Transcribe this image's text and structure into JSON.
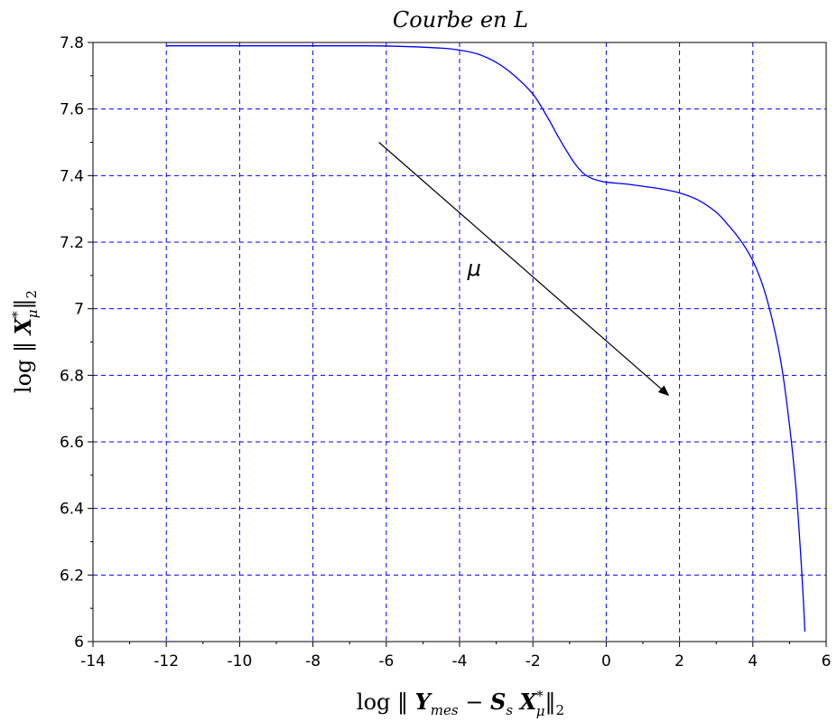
{
  "chart_data": {
    "type": "line",
    "title": "Courbe en L",
    "xlabel": "log ‖ Y_mes − S_s X*_μ ‖_2",
    "ylabel": "log ‖ X*_μ ‖_2",
    "xlim": [
      -14,
      6
    ],
    "ylim": [
      6,
      7.8
    ],
    "xticks": [
      "-14",
      "-12",
      "-10",
      "-8",
      "-6",
      "-4",
      "-2",
      "0",
      "2",
      "4",
      "6"
    ],
    "yticks": [
      "6",
      "6.2",
      "6.4",
      "6.6",
      "6.8",
      "7",
      "7.2",
      "7.4",
      "7.6",
      "7.8"
    ],
    "grid": true,
    "series": [
      {
        "color": "#0000ff",
        "x": [
          -12,
          -10,
          -8,
          -6.5,
          -5.5,
          -4.5,
          -4,
          -3.5,
          -3,
          -2.5,
          -2,
          -1.6,
          -1.3,
          -1.0,
          -0.8,
          -0.6,
          -0.4,
          -0.2,
          0,
          0.5,
          1,
          1.5,
          2,
          2.5,
          3,
          3.3,
          3.6,
          3.9,
          4.1,
          4.3,
          4.5,
          4.7,
          4.85,
          5.0,
          5.1,
          5.2,
          5.3,
          5.38,
          5.42
        ],
        "y": [
          7.79,
          7.79,
          7.79,
          7.79,
          7.788,
          7.783,
          7.777,
          7.765,
          7.74,
          7.7,
          7.645,
          7.575,
          7.515,
          7.46,
          7.428,
          7.405,
          7.392,
          7.385,
          7.38,
          7.375,
          7.368,
          7.36,
          7.348,
          7.327,
          7.29,
          7.255,
          7.215,
          7.165,
          7.12,
          7.06,
          6.98,
          6.88,
          6.78,
          6.65,
          6.55,
          6.43,
          6.27,
          6.12,
          6.03
        ]
      }
    ],
    "annotations": [
      {
        "type": "arrow",
        "from": [
          -6.2,
          7.5
        ],
        "to": [
          1.7,
          6.74
        ],
        "label": "μ",
        "label_pos": [
          -3.6,
          7.1
        ]
      }
    ]
  }
}
